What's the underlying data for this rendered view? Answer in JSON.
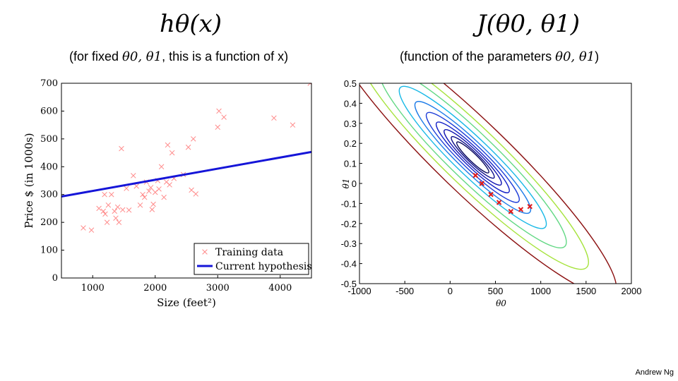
{
  "header": {
    "left_title": "hθ(x)",
    "left_subtitle_pre": "(for fixed ",
    "left_subtitle_params": "θ0, θ1",
    "left_subtitle_post": ", this is a function of x)",
    "right_title": "J(θ0, θ1)",
    "right_subtitle_pre": "(function of the parameters ",
    "right_subtitle_params": "θ0, θ1",
    "right_subtitle_post": ")"
  },
  "footer": {
    "author": "Andrew Ng"
  },
  "chart_data": [
    {
      "type": "scatter",
      "xlabel": "Size (feet²)",
      "ylabel": "Price $ (in 1000s)",
      "xlim": [
        500,
        4500
      ],
      "ylim": [
        0,
        700
      ],
      "xticks": [
        "1000",
        "2000",
        "3000",
        "4000"
      ],
      "yticks": [
        "0",
        "100",
        "200",
        "300",
        "400",
        "500",
        "600",
        "700"
      ],
      "legend_position": "bottom-right",
      "series": [
        {
          "name": "Training data",
          "marker": "x",
          "color": "#ff8a8a",
          "points": [
            [
              850,
              180
            ],
            [
              980,
              172
            ],
            [
              1100,
              250
            ],
            [
              1170,
              240
            ],
            [
              1190,
              300
            ],
            [
              1200,
              230
            ],
            [
              1230,
              200
            ],
            [
              1250,
              262
            ],
            [
              1300,
              300
            ],
            [
              1350,
              240
            ],
            [
              1370,
              215
            ],
            [
              1400,
              255
            ],
            [
              1420,
              200
            ],
            [
              1460,
              465
            ],
            [
              1480,
              245
            ],
            [
              1540,
              322
            ],
            [
              1580,
              244
            ],
            [
              1650,
              368
            ],
            [
              1700,
              330
            ],
            [
              1760,
              262
            ],
            [
              1800,
              300
            ],
            [
              1830,
              290
            ],
            [
              1860,
              345
            ],
            [
              1900,
              312
            ],
            [
              1930,
              325
            ],
            [
              1950,
              246
            ],
            [
              1970,
              265
            ],
            [
              2000,
              308
            ],
            [
              2040,
              350
            ],
            [
              2060,
              320
            ],
            [
              2100,
              400
            ],
            [
              2140,
              290
            ],
            [
              2180,
              345
            ],
            [
              2200,
              478
            ],
            [
              2230,
              335
            ],
            [
              2270,
              450
            ],
            [
              2300,
              358
            ],
            [
              2450,
              372
            ],
            [
              2530,
              470
            ],
            [
              2580,
              316
            ],
            [
              2610,
              500
            ],
            [
              2650,
              302
            ],
            [
              3000,
              542
            ],
            [
              3020,
              600
            ],
            [
              3100,
              578
            ],
            [
              3900,
              575
            ],
            [
              4200,
              550
            ],
            [
              4480,
              700
            ]
          ]
        },
        {
          "name": "Current hypothesis",
          "type": "line",
          "color": "#1515d8",
          "points": [
            [
              500,
              293
            ],
            [
              4500,
              453
            ]
          ]
        }
      ]
    },
    {
      "type": "contour",
      "xlabel": "θ0",
      "ylabel": "θ1",
      "xlim": [
        -1000,
        2000
      ],
      "ylim": [
        -0.5,
        0.5
      ],
      "xticks": [
        "-1000",
        "-500",
        "0",
        "500",
        "1000",
        "1500",
        "2000"
      ],
      "yticks": [
        "0.5",
        "0.4",
        "0.3",
        "0.2",
        "0.1",
        "0",
        "-0.1",
        "-0.2",
        "-0.3",
        "-0.4",
        "-0.5"
      ],
      "center": [
        250,
        0.13
      ],
      "levels": [
        0.5,
        0.9,
        1.6,
        2.6,
        4.2,
        6.5,
        10.5,
        17,
        26,
        40
      ],
      "level_colors": [
        "#06065c",
        "#0a0a88",
        "#0f12b0",
        "#1522c8",
        "#1f3ed8",
        "#1e7ce8",
        "#17b8e6",
        "#62d884",
        "#a6e33c",
        "#8b1010"
      ],
      "path_points": [
        [
          280,
          0.04
        ],
        [
          350,
          0.0
        ],
        [
          450,
          -0.055
        ],
        [
          540,
          -0.095
        ],
        [
          670,
          -0.14
        ],
        [
          780,
          -0.13
        ],
        [
          880,
          -0.115
        ]
      ],
      "path_color": "#e01818"
    }
  ]
}
